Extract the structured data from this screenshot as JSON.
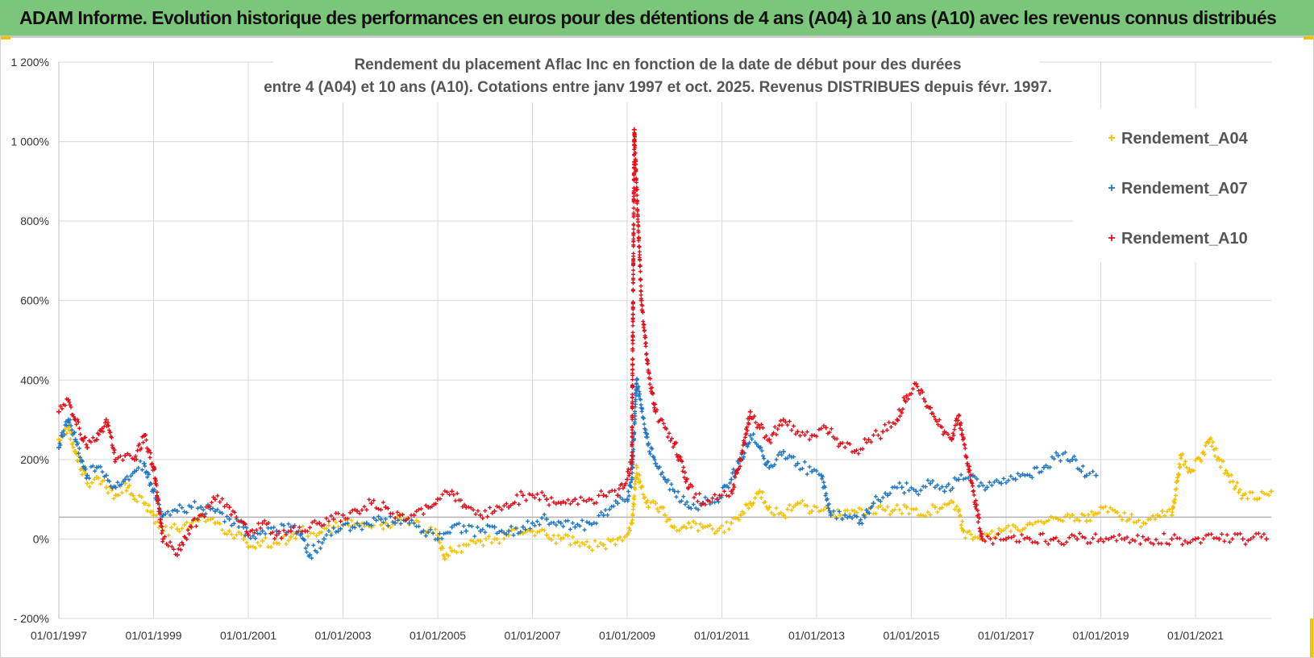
{
  "banner": {
    "title": "ADAM Informe. Evolution historique des performances en euros pour des détentions de 4 ans (A04) à 10 ans (A10) avec les revenus connus distribués"
  },
  "colors": {
    "banner_bg": "#7cc67b",
    "A04": "#f5c000",
    "A07": "#1f77c4",
    "A10": "#e3101b"
  },
  "chart_data": {
    "type": "scatter",
    "title_line1": "Rendement du placement Aflac Inc en fonction de la date de début pour des durées",
    "title_line2": "entre 4 (A04) et 10 ans (A10). Cotations entre janv 1997 et oct. 2025. Revenus DISTRIBUES depuis févr. 1997.",
    "xlabel": "",
    "ylabel": "",
    "xlim": [
      1997.0,
      2022.6
    ],
    "ylim": [
      -200,
      1200
    ],
    "y_ticks": [
      -200,
      0,
      200,
      400,
      600,
      800,
      1000,
      1200
    ],
    "y_tick_labels": [
      "- 200%",
      "0%",
      "200%",
      "400%",
      "600%",
      "800%",
      "1 000%",
      "1 200%"
    ],
    "x_ticks": [
      1997,
      1999,
      2001,
      2003,
      2005,
      2007,
      2009,
      2011,
      2013,
      2015,
      2017,
      2019,
      2021
    ],
    "x_tick_labels": [
      "01/01/1997",
      "01/01/1999",
      "01/01/2001",
      "01/01/2003",
      "01/01/2005",
      "01/01/2007",
      "01/01/2009",
      "01/01/2011",
      "01/01/2013",
      "01/01/2015",
      "01/01/2017",
      "01/01/2019",
      "01/01/2021"
    ],
    "reference_line": 55,
    "legend_position": "right",
    "series": [
      {
        "name": "Rendement_A04",
        "color": "#f5c000",
        "x": [
          1997.0,
          1997.2,
          1997.35,
          1997.6,
          1997.8,
          1998.0,
          1998.2,
          1998.4,
          1998.6,
          1998.8,
          1999.0,
          1999.2,
          1999.5,
          1999.8,
          2000.0,
          2000.3,
          2000.6,
          2000.9,
          2001.0,
          2001.3,
          2001.6,
          2001.9,
          2002.2,
          2002.5,
          2002.8,
          2003.0,
          2003.3,
          2003.6,
          2003.9,
          2004.2,
          2004.5,
          2004.8,
          2005.0,
          2005.15,
          2005.3,
          2005.6,
          2005.9,
          2006.2,
          2006.5,
          2006.8,
          2007.0,
          2007.3,
          2007.6,
          2007.9,
          2008.2,
          2008.5,
          2008.8,
          2009.0,
          2009.1,
          2009.2,
          2009.3,
          2009.45,
          2009.6,
          2009.8,
          2010.0,
          2010.3,
          2010.6,
          2010.9,
          2011.2,
          2011.4,
          2011.6,
          2011.8,
          2012.0,
          2012.3,
          2012.6,
          2012.9,
          2013.2,
          2013.5,
          2013.8,
          2014.0,
          2014.3,
          2014.6,
          2014.9,
          2015.2,
          2015.5,
          2015.8,
          2016.0,
          2016.1,
          2016.3,
          2016.6,
          2016.9,
          2017.2,
          2017.5,
          2017.8,
          2018.1,
          2018.4,
          2018.7,
          2019.0,
          2019.3,
          2019.6,
          2019.9,
          2020.2,
          2020.3,
          2020.5,
          2020.7,
          2020.9,
          2021.1,
          2021.3,
          2021.5,
          2021.7,
          2022.0,
          2022.3,
          2022.6
        ],
        "y": [
          250,
          280,
          220,
          140,
          155,
          130,
          110,
          140,
          100,
          90,
          60,
          20,
          25,
          40,
          60,
          40,
          20,
          0,
          -20,
          -5,
          -10,
          5,
          20,
          15,
          30,
          35,
          40,
          30,
          40,
          50,
          40,
          20,
          10,
          -50,
          -30,
          -15,
          -5,
          0,
          10,
          15,
          20,
          10,
          0,
          -10,
          -20,
          -15,
          0,
          10,
          40,
          180,
          130,
          80,
          90,
          60,
          30,
          40,
          30,
          20,
          40,
          60,
          90,
          120,
          80,
          60,
          90,
          70,
          80,
          60,
          70,
          60,
          80,
          70,
          80,
          60,
          80,
          90,
          70,
          20,
          0,
          10,
          20,
          30,
          40,
          40,
          50,
          60,
          45,
          80,
          70,
          50,
          40,
          60,
          70,
          60,
          210,
          170,
          200,
          250,
          200,
          160,
          110,
          100,
          120
        ]
      },
      {
        "name": "Rendement_A07",
        "color": "#1f77c4",
        "x": [
          1997.0,
          1997.2,
          1997.35,
          1997.6,
          1997.8,
          1998.0,
          1998.2,
          1998.4,
          1998.6,
          1998.8,
          1999.0,
          1999.2,
          1999.5,
          1999.8,
          2000.0,
          2000.3,
          2000.6,
          2000.9,
          2001.0,
          2001.3,
          2001.6,
          2001.9,
          2002.1,
          2002.3,
          2002.6,
          2002.9,
          2003.2,
          2003.5,
          2003.8,
          2004.1,
          2004.4,
          2004.7,
          2005.0,
          2005.3,
          2005.6,
          2005.9,
          2006.2,
          2006.5,
          2006.8,
          2007.0,
          2007.3,
          2007.6,
          2007.9,
          2008.2,
          2008.5,
          2008.8,
          2009.0,
          2009.1,
          2009.2,
          2009.3,
          2009.45,
          2009.6,
          2009.8,
          2010.0,
          2010.3,
          2010.6,
          2010.9,
          2011.2,
          2011.4,
          2011.6,
          2011.8,
          2012.0,
          2012.3,
          2012.6,
          2012.9,
          2013.1,
          2013.3,
          2013.6,
          2013.9,
          2014.2,
          2014.5,
          2014.8,
          2015.1,
          2015.4,
          2015.7,
          2016.0,
          2016.3,
          2016.6,
          2016.9,
          2017.2,
          2017.5,
          2017.8,
          2018.1,
          2018.4,
          2018.7,
          2018.9
        ],
        "y": [
          230,
          300,
          250,
          160,
          180,
          160,
          130,
          150,
          170,
          190,
          120,
          60,
          70,
          80,
          80,
          70,
          50,
          30,
          10,
          20,
          20,
          30,
          10,
          -40,
          0,
          20,
          30,
          40,
          50,
          40,
          40,
          20,
          0,
          30,
          20,
          20,
          30,
          20,
          30,
          40,
          50,
          40,
          30,
          40,
          60,
          90,
          100,
          150,
          400,
          330,
          240,
          190,
          150,
          120,
          80,
          90,
          100,
          150,
          200,
          260,
          230,
          180,
          220,
          190,
          170,
          160,
          60,
          60,
          40,
          90,
          110,
          130,
          120,
          140,
          120,
          150,
          160,
          130,
          140,
          150,
          160,
          180,
          210,
          200,
          160,
          160
        ]
      },
      {
        "name": "Rendement_A10",
        "color": "#e3101b",
        "x": [
          1997.0,
          1997.2,
          1997.35,
          1997.6,
          1997.8,
          1998.0,
          1998.2,
          1998.4,
          1998.6,
          1998.8,
          1999.0,
          1999.2,
          1999.5,
          1999.8,
          2000.0,
          2000.3,
          2000.6,
          2000.9,
          2001.0,
          2001.3,
          2001.6,
          2001.9,
          2002.2,
          2002.5,
          2002.8,
          2003.0,
          2003.3,
          2003.6,
          2003.9,
          2004.2,
          2004.5,
          2004.8,
          2005.0,
          2005.3,
          2005.6,
          2005.9,
          2006.2,
          2006.5,
          2006.8,
          2007.0,
          2007.3,
          2007.6,
          2007.9,
          2008.2,
          2008.5,
          2008.8,
          2009.0,
          2009.1,
          2009.15,
          2009.2,
          2009.3,
          2009.45,
          2009.6,
          2009.8,
          2010.0,
          2010.3,
          2010.6,
          2010.9,
          2011.2,
          2011.4,
          2011.6,
          2011.8,
          2012.0,
          2012.3,
          2012.6,
          2012.9,
          2013.2,
          2013.5,
          2013.8,
          2014.1,
          2014.4,
          2014.7,
          2014.9,
          2015.1,
          2015.4,
          2015.7,
          2015.85,
          2016.0,
          2016.5,
          2017.0,
          2017.5,
          2018.0,
          2018.5,
          2019.0,
          2019.5,
          2020.0,
          2020.5,
          2021.0,
          2021.5,
          2022.0,
          2022.5
        ],
        "y": [
          320,
          350,
          300,
          230,
          250,
          300,
          200,
          210,
          200,
          260,
          180,
          0,
          -40,
          30,
          60,
          100,
          80,
          40,
          10,
          40,
          10,
          20,
          20,
          40,
          50,
          60,
          70,
          90,
          80,
          60,
          60,
          80,
          100,
          120,
          80,
          60,
          70,
          80,
          110,
          110,
          100,
          90,
          100,
          100,
          110,
          110,
          150,
          200,
          1030,
          880,
          600,
          420,
          320,
          280,
          240,
          130,
          90,
          100,
          120,
          200,
          320,
          280,
          250,
          300,
          270,
          260,
          280,
          240,
          220,
          250,
          270,
          300,
          360,
          390,
          330,
          270,
          250,
          310,
          0,
          0,
          0,
          0,
          0,
          0,
          0,
          0,
          0,
          0,
          0,
          0,
          0
        ]
      }
    ]
  }
}
